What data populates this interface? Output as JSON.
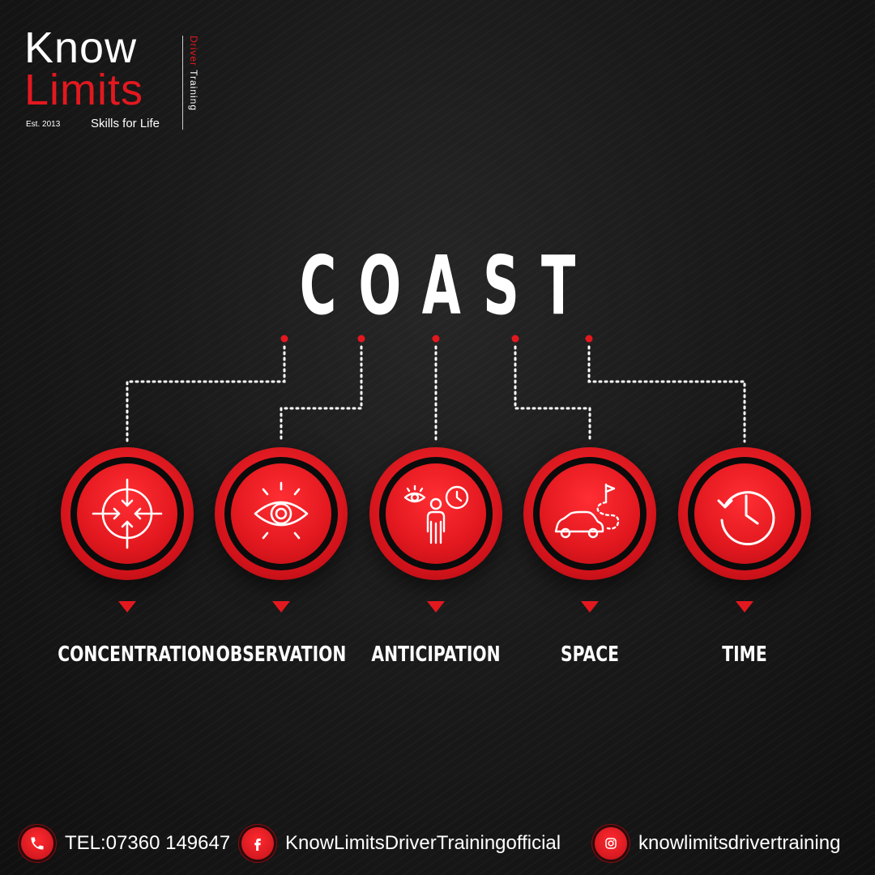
{
  "brand": {
    "line1": "Know",
    "line2": "Limits",
    "est": "Est. 2013",
    "tagline": "Skills for Life",
    "vertical_red": "Driver",
    "vertical_white": " Training",
    "colors": {
      "accent": "#e3181f",
      "background": "#141414",
      "text": "#ffffff"
    }
  },
  "title": "COAST",
  "skills": [
    {
      "label": "CONCENTRATION",
      "icon": "crosshair-arrows-icon"
    },
    {
      "label": "OBSERVATION",
      "icon": "eye-icon"
    },
    {
      "label": "ANTICIPATION",
      "icon": "person-eye-clock-icon"
    },
    {
      "label": "SPACE",
      "icon": "car-route-flag-icon"
    },
    {
      "label": "TIME",
      "icon": "history-clock-icon"
    }
  ],
  "footer": {
    "phone": {
      "text": "TEL:07360 149647",
      "icon": "phone-icon"
    },
    "facebook": {
      "text": "KnowLimitsDriverTrainingofficial",
      "icon": "facebook-icon"
    },
    "instagram": {
      "text": "knowlimitsdrivertraining",
      "icon": "instagram-icon"
    }
  }
}
